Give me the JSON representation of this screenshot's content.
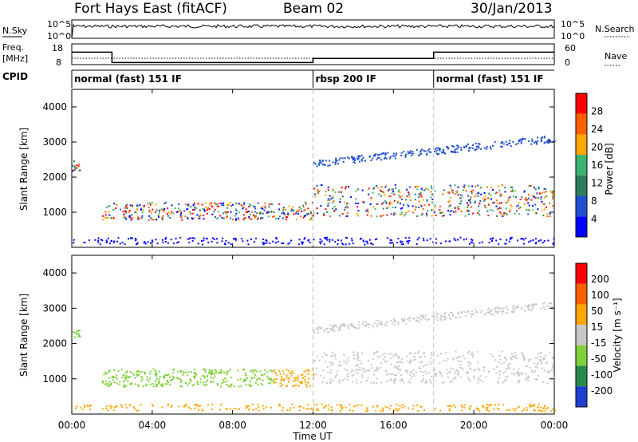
{
  "header": {
    "station": "Fort Hays East (fitACF)",
    "beam": "Beam 02",
    "date": "30/Jan/2013"
  },
  "colors": {
    "power": [
      "#0000ff",
      "#1f4fd0",
      "#2e7d5a",
      "#3cb371",
      "#ffa500",
      "#ff6000",
      "#ff0000"
    ],
    "velocity": [
      "#1f3fd0",
      "#2a8a4a",
      "#7fd13a",
      "#c8c8c8",
      "#ffa500",
      "#ff6000",
      "#ff0000"
    ]
  },
  "chart_data": [
    {
      "type": "line",
      "name": "noise",
      "left_label": "N.Sky",
      "right_label": "N.Search",
      "left_ticks": [
        "10^5",
        "10^0"
      ],
      "right_ticks": [
        "10^5",
        "10^0"
      ]
    },
    {
      "type": "line",
      "name": "frequency",
      "left_label_1": "Freq.",
      "left_label_2": "[MHz]",
      "right_label": "Nave",
      "left_ticks": [
        "18",
        "8"
      ],
      "right_ticks": [
        "60",
        "0"
      ],
      "freq_steps": [
        {
          "t0": 0,
          "t1": 2,
          "value": 14
        },
        {
          "t0": 2,
          "t1": 12,
          "value": 9
        },
        {
          "t0": 12,
          "t1": 18,
          "value": 11
        },
        {
          "t0": 18,
          "t1": 24,
          "value": 14
        }
      ]
    },
    {
      "type": "table",
      "name": "cpid",
      "label": "CPID",
      "modes": [
        {
          "t": 0,
          "text": "normal (fast) 151 IF"
        },
        {
          "t": 12,
          "text": "rbsp 200 IF"
        },
        {
          "t": 18,
          "text": "normal (fast) 151 IF"
        }
      ]
    },
    {
      "type": "heatmap",
      "name": "power",
      "ylabel": "Slant Range [km]",
      "ylim": [
        0,
        4500
      ],
      "yticks": [
        "1000",
        "2000",
        "3000",
        "4000"
      ],
      "cb_label": "Power [dB]",
      "cb_ticks": [
        "28",
        "24",
        "20",
        "16",
        "12",
        "8",
        "4"
      ]
    },
    {
      "type": "heatmap",
      "name": "velocity",
      "ylabel": "Slant Range [km]",
      "ylim": [
        0,
        4500
      ],
      "yticks": [
        "1000",
        "2000",
        "3000",
        "4000"
      ],
      "cb_label": "Velocity [m s⁻¹]",
      "cb_ticks": [
        "200",
        "100",
        "50",
        "15",
        "-15",
        "-50",
        "-100",
        "-200"
      ]
    }
  ],
  "xaxis": {
    "label": "Time UT",
    "ticks": [
      "00:00",
      "04:00",
      "08:00",
      "12:00",
      "16:00",
      "20:00",
      "00:00"
    ]
  }
}
